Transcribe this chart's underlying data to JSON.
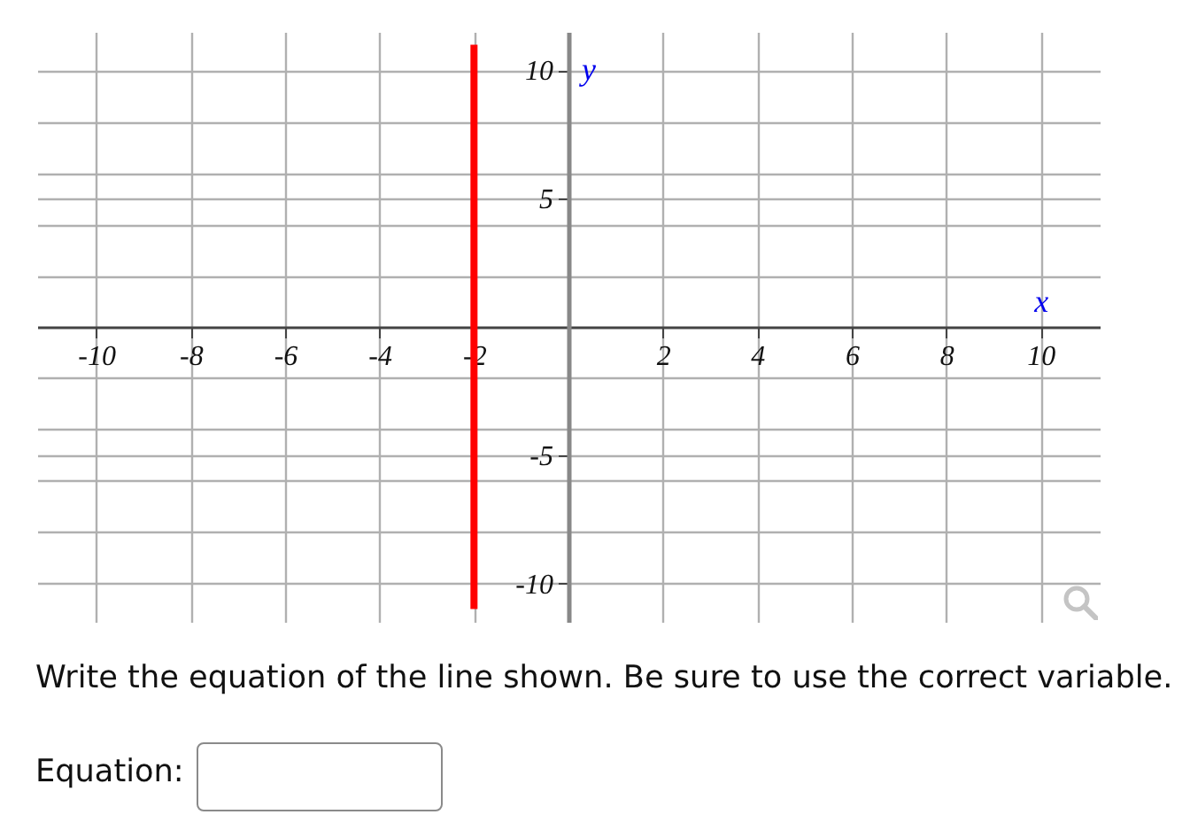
{
  "chart_data": {
    "type": "line",
    "xlabel": "x",
    "ylabel": "y",
    "xlim": [
      -11.25,
      11.25
    ],
    "ylim": [
      -11.5,
      11.5
    ],
    "xticks": [
      -10,
      -8,
      -6,
      -4,
      -2,
      2,
      4,
      6,
      8,
      10
    ],
    "yticks": [
      -10,
      {
        "value": -8,
        "label": null
      },
      {
        "value": -6,
        "label": null
      },
      -5,
      {
        "value": -4,
        "label": null
      },
      {
        "value": -2,
        "label": null
      },
      {
        "value": 2,
        "label": null
      },
      {
        "value": 4,
        "label": null
      },
      5,
      {
        "value": 6,
        "label": null
      },
      {
        "value": 8,
        "label": null
      },
      10
    ],
    "grid": true,
    "series": [
      {
        "color": "#ff0000",
        "x": [
          -2,
          -2
        ],
        "values": [
          11,
          -11
        ]
      }
    ],
    "annotations": [
      "Write the equation of the line shown. Be sure to use the correct variable.",
      "Equation:"
    ]
  }
}
